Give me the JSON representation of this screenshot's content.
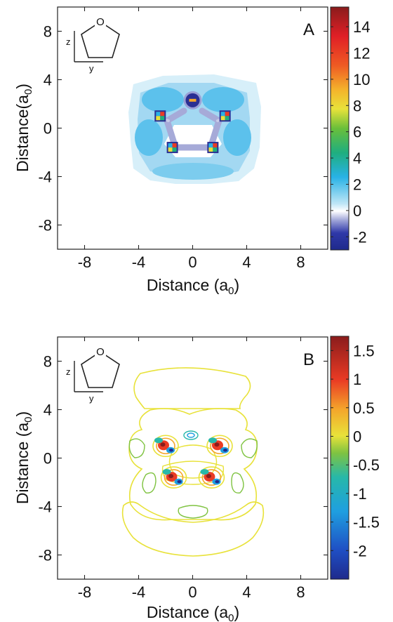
{
  "chart_data": [
    {
      "type": "heatmap",
      "panel_label": "A",
      "xlabel": "Distance (a",
      "xlabel_sub": "0",
      "xlabel_close": ")",
      "ylabel": "Distance(a",
      "ylabel_sub": "0",
      "ylabel_close": ")",
      "xlim": [
        -10,
        10
      ],
      "ylim": [
        -10,
        10
      ],
      "xticks": [
        -8,
        -4,
        0,
        4,
        8
      ],
      "yticks": [
        8,
        4,
        0,
        -4,
        -8
      ],
      "colorbar": {
        "min": -3,
        "max": 15.5,
        "ticks": [
          14,
          12,
          10,
          8,
          6,
          4,
          2,
          0,
          -2
        ]
      },
      "inset": {
        "molecule": "five-membered ring",
        "atom_label": "O",
        "axis_vertical": "z",
        "axis_horizontal": "y"
      },
      "features": [
        {
          "x": 0,
          "y": 2.3,
          "value": -2.5,
          "shape": "blob"
        },
        {
          "x": 0,
          "y": 2.3,
          "value": 10,
          "shape": "center"
        },
        {
          "x": -2.4,
          "y": 1.0,
          "value": 12,
          "shape": "hotspot"
        },
        {
          "x": 2.4,
          "y": 1.0,
          "value": 12,
          "shape": "hotspot"
        },
        {
          "x": -1.5,
          "y": -1.6,
          "value": 12,
          "shape": "hotspot"
        },
        {
          "x": 1.5,
          "y": -1.6,
          "value": 12,
          "shape": "hotspot"
        }
      ]
    },
    {
      "type": "contour",
      "panel_label": "B",
      "xlabel": "Distance (a",
      "xlabel_sub": "0",
      "xlabel_close": ")",
      "ylabel": "Distance (a",
      "ylabel_sub": "0",
      "ylabel_close": ")",
      "xlim": [
        -10,
        10
      ],
      "ylim": [
        -10,
        10
      ],
      "xticks": [
        -8,
        -4,
        0,
        4,
        8
      ],
      "yticks": [
        8,
        4,
        0,
        -4,
        -8
      ],
      "colorbar": {
        "min": -2.5,
        "max": 1.75,
        "ticks": [
          1.5,
          1,
          0.5,
          0,
          -0.5,
          -1,
          -1.5,
          -2
        ]
      },
      "inset": {
        "molecule": "five-membered ring",
        "atom_label": "O",
        "axis_vertical": "z",
        "axis_horizontal": "y"
      },
      "features": [
        {
          "x": -2.0,
          "y": 1.0,
          "value": 1.0,
          "shape": "lobe"
        },
        {
          "x": 2.0,
          "y": 1.0,
          "value": 1.0,
          "shape": "lobe"
        },
        {
          "x": -1.4,
          "y": -1.6,
          "value": 1.0,
          "shape": "lobe"
        },
        {
          "x": 1.4,
          "y": -1.6,
          "value": 1.0,
          "shape": "lobe"
        },
        {
          "x": 0,
          "y": 1.8,
          "value": -0.5,
          "shape": "small-loop"
        }
      ]
    }
  ]
}
